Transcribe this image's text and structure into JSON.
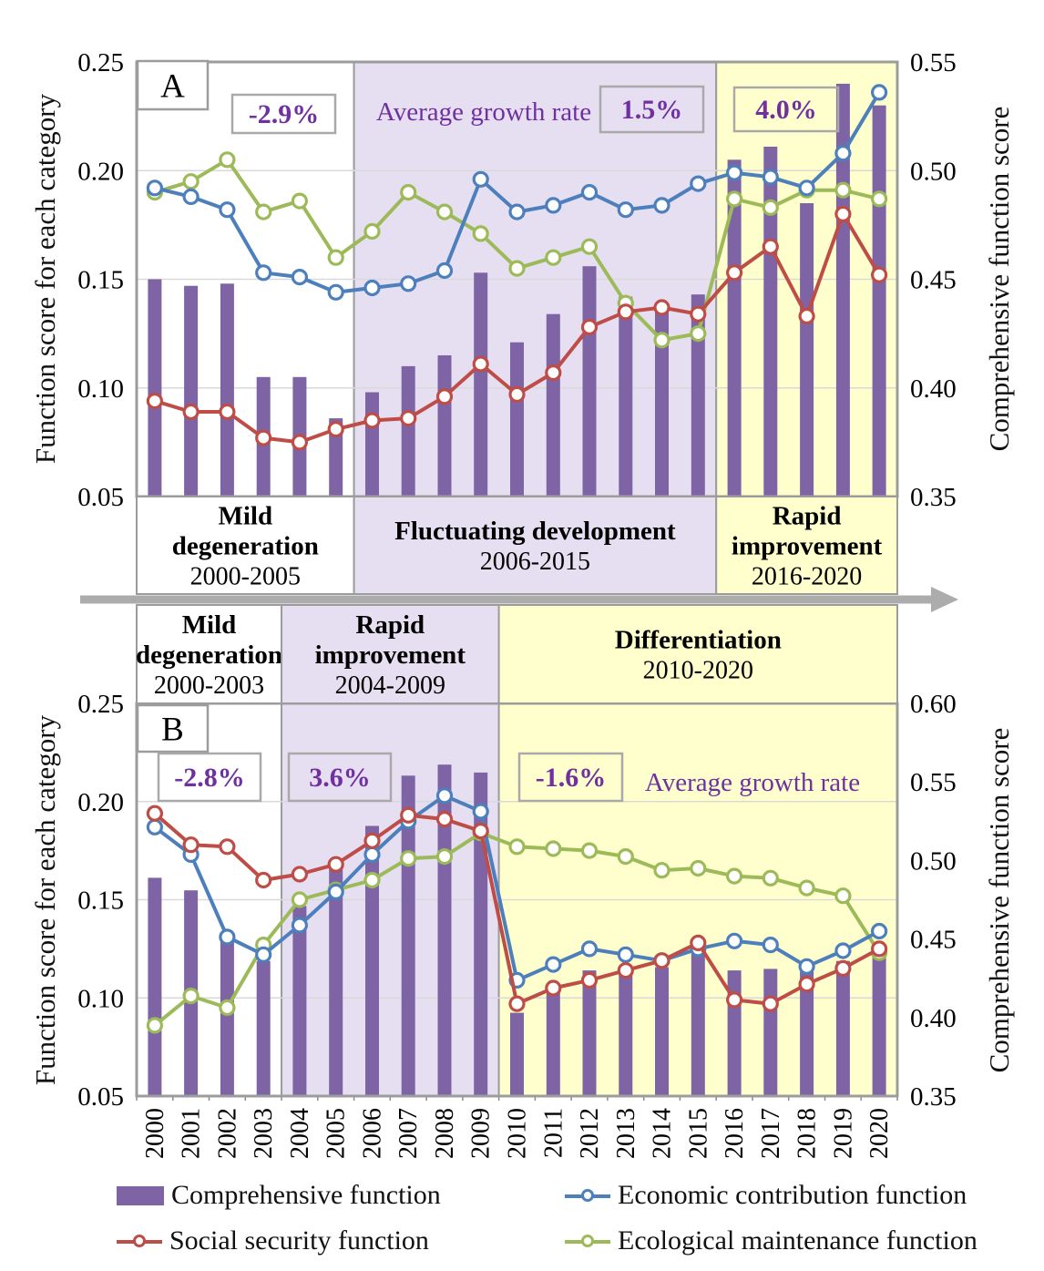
{
  "legend": [
    {
      "label": "Comprehensive function",
      "color": "#7E64A5",
      "marker": "bar"
    },
    {
      "label": "Economic contribution function",
      "color": "#4C7FBC",
      "marker": "line-circle"
    },
    {
      "label": "Social security function",
      "color": "#BE4C47",
      "marker": "line-circle"
    },
    {
      "label": "Ecological maintenance function",
      "color": "#9DBA59",
      "marker": "line-circle"
    }
  ],
  "colors": {
    "bar_purple": "#7E64A5",
    "economic_blue": "#4C7FBC",
    "social_red": "#BE4C47",
    "ecological_green": "#9DBA59",
    "annotation_purple": "#7030A0",
    "band_purple": "#E6DFF1",
    "band_yellow": "#FFFFCD",
    "border_gray": "#9C9C9C"
  },
  "chart_data": [
    {
      "type": "bar",
      "panel": "A",
      "title": "",
      "categories": [
        "2000",
        "2001",
        "2002",
        "2003",
        "2004",
        "2005",
        "2006",
        "2007",
        "2008",
        "2009",
        "2010",
        "2011",
        "2012",
        "2013",
        "2014",
        "2015",
        "2016",
        "2017",
        "2018",
        "2019",
        "2020"
      ],
      "left_axis": {
        "title": "Function score for each category",
        "ticks": [
          "0.25",
          "0.20",
          "0.15",
          "0.10",
          "0.05"
        ],
        "range": [
          0.05,
          0.25
        ]
      },
      "right_axis": {
        "title": "Comprehensive function score",
        "ticks": [
          "0.55",
          "0.50",
          "0.45",
          "0.40",
          "0.35"
        ],
        "range": [
          0.35,
          0.55
        ]
      },
      "growth_rate_label": "Average growth rate",
      "grid": true,
      "series": [
        {
          "name": "Comprehensive function",
          "type": "bar",
          "axis": "right",
          "color": "#7E64A5",
          "values": [
            0.45,
            0.447,
            0.448,
            0.405,
            0.405,
            0.386,
            0.398,
            0.41,
            0.415,
            0.453,
            0.421,
            0.434,
            0.456,
            0.442,
            0.438,
            0.443,
            0.505,
            0.511,
            0.485,
            0.54,
            0.53
          ]
        },
        {
          "name": "Economic contribution function",
          "type": "line",
          "axis": "left",
          "color": "#4C7FBC",
          "values": [
            0.192,
            0.188,
            0.182,
            0.153,
            0.151,
            0.144,
            0.146,
            0.148,
            0.154,
            0.196,
            0.181,
            0.184,
            0.19,
            0.182,
            0.184,
            0.194,
            0.199,
            0.197,
            0.192,
            0.208,
            0.236
          ]
        },
        {
          "name": "Social security function",
          "type": "line",
          "axis": "left",
          "color": "#BE4C47",
          "values": [
            0.094,
            0.089,
            0.089,
            0.077,
            0.075,
            0.081,
            0.085,
            0.086,
            0.096,
            0.111,
            0.097,
            0.107,
            0.128,
            0.135,
            0.137,
            0.134,
            0.153,
            0.165,
            0.133,
            0.18,
            0.152
          ]
        },
        {
          "name": "Ecological maintenance function",
          "type": "line",
          "axis": "left",
          "color": "#9DBA59",
          "values": [
            0.19,
            0.195,
            0.205,
            0.181,
            0.186,
            0.16,
            0.172,
            0.19,
            0.181,
            0.171,
            0.155,
            0.16,
            0.165,
            0.139,
            0.122,
            0.125,
            0.187,
            0.183,
            0.191,
            0.191,
            0.187
          ]
        }
      ],
      "phase_year_spans": [
        6,
        10,
        5
      ],
      "phases": [
        {
          "lines": [
            "Mild",
            "degeneration",
            "2000-2005"
          ],
          "band": "white",
          "rate": "-2.9%"
        },
        {
          "lines": [
            "Fluctuating development",
            "2006-2015"
          ],
          "band": "purple",
          "rate": "1.5%"
        },
        {
          "lines": [
            "Rapid",
            "improvement",
            "2016-2020"
          ],
          "band": "yellow",
          "rate": "4.0%"
        }
      ]
    },
    {
      "type": "bar",
      "panel": "B",
      "title": "",
      "categories": [
        "2000",
        "2001",
        "2002",
        "2003",
        "2004",
        "2005",
        "2006",
        "2007",
        "2008",
        "2009",
        "2010",
        "2011",
        "2012",
        "2013",
        "2014",
        "2015",
        "2016",
        "2017",
        "2018",
        "2019",
        "2020"
      ],
      "left_axis": {
        "title": "Function score for each category",
        "ticks": [
          "0.25",
          "0.20",
          "0.15",
          "0.10",
          "0.05"
        ],
        "range": [
          0.05,
          0.25
        ]
      },
      "right_axis": {
        "title": "Comprehensive function score",
        "ticks": [
          "0.60",
          "0.55",
          "0.50",
          "0.45",
          "0.40",
          "0.35"
        ],
        "range": [
          0.35,
          0.6
        ]
      },
      "growth_rate_label": "Average growth rate",
      "grid": true,
      "series": [
        {
          "name": "Comprehensive function",
          "type": "bar",
          "axis": "right",
          "color": "#7E64A5",
          "values": [
            0.489,
            0.481,
            0.452,
            0.436,
            0.471,
            0.495,
            0.522,
            0.554,
            0.561,
            0.556,
            0.403,
            0.418,
            0.43,
            0.428,
            0.432,
            0.443,
            0.43,
            0.431,
            0.43,
            0.436,
            0.439
          ]
        },
        {
          "name": "Economic contribution function",
          "type": "line",
          "axis": "left",
          "color": "#4C7FBC",
          "values": [
            0.187,
            0.173,
            0.131,
            0.122,
            0.137,
            0.154,
            0.173,
            0.19,
            0.203,
            0.195,
            0.109,
            0.117,
            0.125,
            0.122,
            0.119,
            0.125,
            0.129,
            0.127,
            0.116,
            0.124,
            0.134
          ]
        },
        {
          "name": "Social security function",
          "type": "line",
          "axis": "left",
          "color": "#BE4C47",
          "values": [
            0.194,
            0.178,
            0.177,
            0.16,
            0.163,
            0.168,
            0.18,
            0.193,
            0.191,
            0.185,
            0.097,
            0.105,
            0.109,
            0.114,
            0.119,
            0.128,
            0.099,
            0.097,
            0.107,
            0.115,
            0.125
          ]
        },
        {
          "name": "Ecological maintenance function",
          "type": "line",
          "axis": "left",
          "color": "#9DBA59",
          "values": [
            0.086,
            0.101,
            0.095,
            0.127,
            0.15,
            0.155,
            0.16,
            0.171,
            0.172,
            0.184,
            0.177,
            0.176,
            0.175,
            0.172,
            0.165,
            0.166,
            0.162,
            0.161,
            0.156,
            0.152,
            0.123
          ]
        }
      ],
      "phase_year_spans": [
        4,
        6,
        11
      ],
      "phases": [
        {
          "lines": [
            "Mild",
            "degeneration",
            "2000-2003"
          ],
          "band": "white",
          "rate": "-2.8%"
        },
        {
          "lines": [
            "Rapid",
            "improvement",
            "2004-2009"
          ],
          "band": "purple",
          "rate": "3.6%"
        },
        {
          "lines": [
            "Differentiation",
            "2010-2020"
          ],
          "band": "yellow",
          "rate": "-1.6%"
        }
      ]
    }
  ]
}
